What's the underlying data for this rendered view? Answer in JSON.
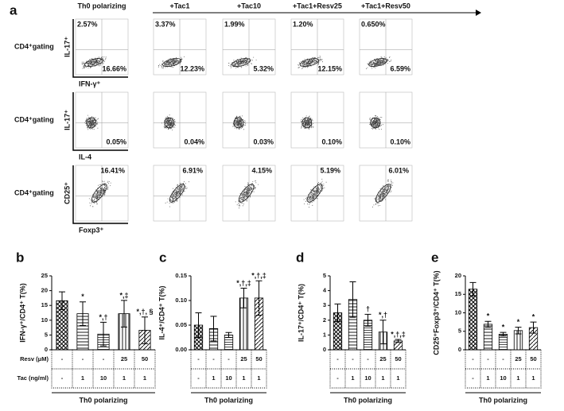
{
  "panel_a": {
    "letter": "a",
    "conditions": [
      "Th0 polarizing",
      "+Tac1",
      "+Tac10",
      "+Tac1+Resv25",
      "+Tac1+Resv50"
    ],
    "rows": [
      {
        "gating": "CD4⁺gating",
        "y_label": "IL-17⁺",
        "x_label": "IFN-γ⁺",
        "top_left": [
          "2.57%",
          "3.37%",
          "1.99%",
          "1.20%",
          "0.650%"
        ],
        "bottom_right": [
          "16.66%",
          "12.23%",
          "5.32%",
          "12.15%",
          "6.59%"
        ]
      },
      {
        "gating": "CD4⁺gating",
        "y_label": "IL-17⁺",
        "x_label": "IL-4",
        "bottom_right": [
          "0.05%",
          "0.04%",
          "0.03%",
          "0.10%",
          "0.10%"
        ]
      },
      {
        "gating": "CD4⁺gating",
        "y_label": "CD25⁺",
        "x_label": "Foxp3⁺",
        "top_right": [
          "16.41%",
          "6.91%",
          "4.15%",
          "5.19%",
          "6.01%"
        ]
      }
    ]
  },
  "chart_data": [
    {
      "type": "bar",
      "letter": "b",
      "ylabel": "IFN-γ⁺/CD4⁺ T(%)",
      "values": [
        16.6,
        12.2,
        5.3,
        12.2,
        6.6
      ],
      "errors": [
        3,
        4,
        4,
        4.5,
        4.5
      ],
      "annotations": [
        null,
        "*",
        "*,†",
        "*,‡",
        "*,†, §"
      ],
      "ylim": [
        0,
        25
      ],
      "yticks": [
        0,
        5,
        10,
        15,
        20,
        25
      ],
      "table": {
        "row_labels": [
          "Resv (μM)",
          "Tac (ng/ml)"
        ],
        "rows": [
          [
            "-",
            "-",
            "-",
            "25",
            "50"
          ],
          [
            "-",
            "1",
            "10",
            "1",
            "1"
          ]
        ]
      },
      "xlabel": "Th0 polarizing"
    },
    {
      "type": "bar",
      "letter": "c",
      "ylabel": "IL-4⁺/CD4⁺ T(%)",
      "values": [
        0.05,
        0.043,
        0.03,
        0.105,
        0.105
      ],
      "errors": [
        0.025,
        0.025,
        0.005,
        0.02,
        0.035
      ],
      "annotations": [
        null,
        null,
        null,
        "*,†,‡",
        "*,†,‡"
      ],
      "ylim": [
        0,
        0.15
      ],
      "yticks": [
        {
          "value": 0,
          "label": "0.00"
        },
        {
          "value": 0.05,
          "label": "0.05"
        },
        {
          "value": 0.1,
          "label": "0.10"
        },
        {
          "value": 0.15,
          "label": "0.15"
        }
      ],
      "table": {
        "rows": [
          [
            "-",
            "-",
            "-",
            "25",
            "50"
          ],
          [
            "-",
            "1",
            "10",
            "1",
            "1"
          ]
        ]
      },
      "xlabel": "Th0 polarizing"
    },
    {
      "type": "bar",
      "letter": "d",
      "ylabel": "IL-17⁺/CD4⁺ T(%)",
      "values": [
        2.5,
        3.4,
        2.0,
        1.2,
        0.6
      ],
      "errors": [
        0.6,
        1.2,
        0.4,
        0.8,
        0.1
      ],
      "annotations": [
        null,
        null,
        "†",
        "*,†",
        "*,†,‡"
      ],
      "ylim": [
        0,
        5
      ],
      "yticks": [
        0,
        1,
        2,
        3,
        4,
        5
      ],
      "table": {
        "rows": [
          [
            "-",
            "-",
            "-",
            "25",
            "50"
          ],
          [
            "-",
            "1",
            "10",
            "1",
            "1"
          ]
        ]
      },
      "xlabel": "Th0 polarizing"
    },
    {
      "type": "bar",
      "letter": "e",
      "ylabel": "CD25⁺Foxp3⁺/CD4⁺ T(%)",
      "values": [
        16.4,
        6.9,
        4.2,
        5.2,
        6.0
      ],
      "errors": [
        1.8,
        0.8,
        0.5,
        0.9,
        1.5
      ],
      "annotations": [
        null,
        "*",
        "*",
        "*",
        "*"
      ],
      "ylim": [
        0,
        20
      ],
      "yticks": [
        0,
        5,
        10,
        15,
        20
      ],
      "table": {
        "rows": [
          [
            "-",
            "-",
            "-",
            "25",
            "50"
          ],
          [
            "-",
            "1",
            "10",
            "1",
            "1"
          ]
        ]
      },
      "xlabel": "Th0 polarizing"
    }
  ]
}
